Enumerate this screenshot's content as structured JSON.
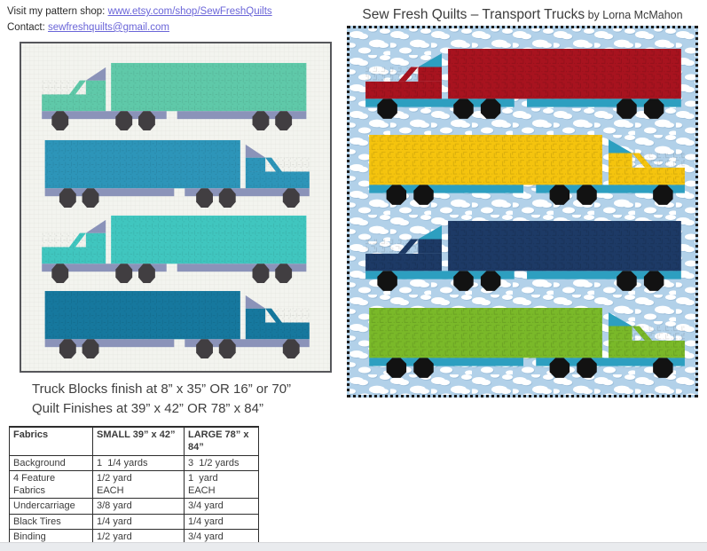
{
  "header": {
    "shop_line_prefix": "Visit my pattern shop: ",
    "shop_link": "www.etsy.com/shop/SewFreshQuilts",
    "contact_line_prefix": "Contact: ",
    "contact_link": "sewfreshquilts@gmail.com"
  },
  "title": {
    "main": "Sew Fresh Quilts – Transport Trucks",
    "byline": " by Lorna McMahon"
  },
  "notes": {
    "line1": "Truck Blocks finish at 8” x 35” OR 16” or 70”",
    "line2": "Quilt Finishes at 39” x 42” OR 78” x 84”"
  },
  "fabrics_table": {
    "headers": [
      "Fabrics",
      "SMALL 39” x 42”",
      "LARGE 78” x 84”"
    ],
    "rows": [
      {
        "fabric": "Background",
        "small": "1  1/4 yards",
        "large": "3  1/2 yards"
      },
      {
        "fabric": "4 Feature Fabrics",
        "small": "1/2 yard\nEACH",
        "large": "1  yard\nEACH"
      },
      {
        "fabric": "Undercarriage",
        "small": "3/8 yard",
        "large": "3/4 yard"
      },
      {
        "fabric": "Black Tires",
        "small": "1/4 yard",
        "large": "1/4 yard"
      },
      {
        "fabric": "Binding",
        "small": "1/2 yard",
        "large": "3/4 yard"
      }
    ]
  },
  "pattern_quilt": {
    "description": "pattern mockup quilt with four teal trucks on white grid background",
    "background": "#f3f4ef",
    "grid_line": "#e5e6e0",
    "border": "#56575b",
    "undercarriage": "#8b93b9",
    "deflector": "#8b93b9",
    "tire": "#413e41",
    "trucks": [
      {
        "name": "truck-mint",
        "body": "#5fc9a9",
        "facing": "left"
      },
      {
        "name": "truck-blue",
        "body": "#2d95b9",
        "facing": "right"
      },
      {
        "name": "truck-turquoise",
        "body": "#40c6bf",
        "facing": "left"
      },
      {
        "name": "truck-teal",
        "body": "#16789e",
        "facing": "right"
      }
    ]
  },
  "photo_quilt": {
    "description": "finished quilt photo with four trucks on cloudy sky fabric",
    "sky": "#b2d1e9",
    "cloud": "#ffffff",
    "cloud_shadow": "#9dbfdb",
    "border": "#1b1b1b",
    "undercarriage": "#2d9fc0",
    "deflector": "#2d9fc0",
    "tire": "#121212",
    "trucks": [
      {
        "name": "truck-red",
        "body": "#a8131f",
        "facing": "left"
      },
      {
        "name": "truck-yellow",
        "body": "#f5c40e",
        "facing": "right"
      },
      {
        "name": "truck-navy",
        "body": "#1d3a66",
        "facing": "left"
      },
      {
        "name": "truck-green",
        "body": "#7ab929",
        "facing": "right"
      }
    ]
  }
}
